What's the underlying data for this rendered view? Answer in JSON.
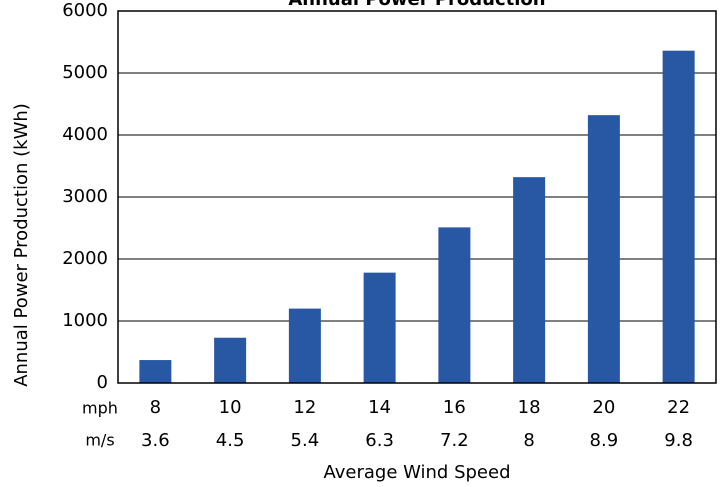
{
  "chart_data": {
    "type": "bar",
    "title": "Annual Power Production",
    "x_label": "Average Wind Speed",
    "y_label": "Annual Power Production (kWh)",
    "category_unit": "mph",
    "categories": [
      "8",
      "10",
      "12",
      "14",
      "16",
      "18",
      "20",
      "22"
    ],
    "secondary_unit": "m/s",
    "secondary_categories": [
      "3.6",
      "4.5",
      "5.4",
      "6.3",
      "7.2",
      "8",
      "8.9",
      "9.8"
    ],
    "values": [
      370,
      730,
      1200,
      1780,
      2510,
      3320,
      4320,
      5360
    ],
    "color": "#2857a4",
    "ylim": [
      0,
      6000
    ],
    "yticks": [
      0,
      1000,
      2000,
      3000,
      4000,
      5000,
      6000
    ],
    "grid": true
  }
}
